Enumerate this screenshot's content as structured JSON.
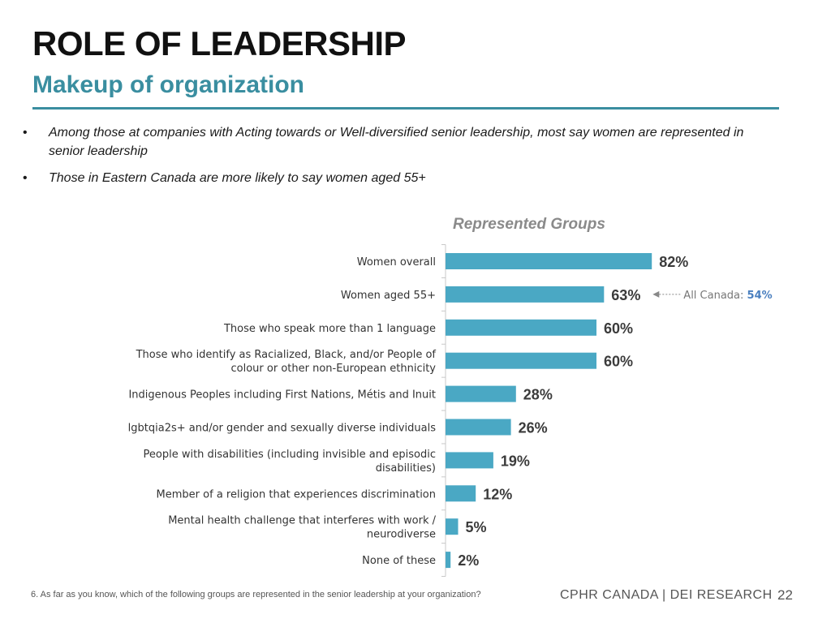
{
  "header": {
    "title": "ROLE OF LEADERSHIP",
    "subtitle": "Makeup of organization"
  },
  "bullets": [
    {
      "marker": "•",
      "text": "Among those at companies with Acting towards or Well-diversified senior leadership, most say women are represented in senior leadership"
    },
    {
      "marker": "•",
      "text": "Those in Eastern Canada are more likely to say women aged 55+"
    }
  ],
  "colors": {
    "bar": "#4aa8c4",
    "accent": "#3a8ea0",
    "callout_value": "#4a7fbf"
  },
  "chart_data": {
    "type": "bar",
    "orientation": "horizontal",
    "title": "Represented Groups",
    "categories": [
      [
        "Women overall"
      ],
      [
        "Women aged 55+"
      ],
      [
        "Those who speak more than 1 language"
      ],
      [
        "Those who identify as Racialized, Black, and/or People of",
        "colour or other non-European ethnicity"
      ],
      [
        "Indigenous Peoples including First Nations, Métis and Inuit"
      ],
      [
        "lgbtqia2s+ and/or gender and sexually diverse individuals"
      ],
      [
        "People with disabilities (including invisible and episodic",
        "disabilities)"
      ],
      [
        "Member of a religion that experiences discrimination"
      ],
      [
        "Mental health challenge that interferes with work /",
        "neurodiverse"
      ],
      [
        "None of these"
      ]
    ],
    "values": [
      82,
      63,
      60,
      60,
      28,
      26,
      19,
      12,
      5,
      2
    ],
    "value_labels": [
      "82%",
      "63%",
      "60%",
      "60%",
      "28%",
      "26%",
      "19%",
      "12%",
      "5%",
      "2%"
    ],
    "xlim": [
      0,
      100
    ],
    "annotation": {
      "row": 1,
      "label": "All Canada: ",
      "value": "54%"
    },
    "grid": false,
    "legend": "none"
  },
  "footer": {
    "question": "6. As far as you know, which of the following groups are represented in the senior leadership at your organization?",
    "brand": "CPHR CANADA | DEI RESEARCH",
    "page": "22"
  }
}
